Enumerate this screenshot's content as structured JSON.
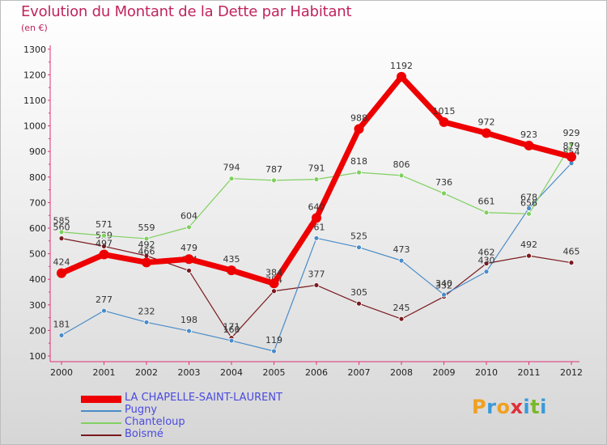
{
  "title": "Evolution du Montant de la Dette par Habitant",
  "unit": "(en €)",
  "brand": {
    "letters": [
      "P",
      "r",
      "o",
      "x",
      "i",
      "t",
      "i"
    ],
    "colors": [
      "#f0a020",
      "#3a9ad9",
      "#f0a020",
      "#e0303a",
      "#3a9ad9",
      "#7ab828",
      "#3a9ad9"
    ]
  },
  "chart_data": {
    "type": "line",
    "title": "Evolution du Montant de la Dette par Habitant",
    "ylabel": "(en €)",
    "xlabel": "",
    "ylim": [
      100,
      1300
    ],
    "yticks": [
      100,
      200,
      300,
      400,
      500,
      600,
      700,
      800,
      900,
      1000,
      1100,
      1200,
      1300
    ],
    "categories": [
      "2000",
      "2001",
      "2002",
      "2003",
      "2004",
      "2005",
      "2006",
      "2007",
      "2008",
      "2009",
      "2010",
      "2011",
      "2012"
    ],
    "grid": false,
    "legend_position": "bottom-left",
    "series": [
      {
        "name": "Boismé",
        "color": "#7a1a1f",
        "values": [
          560,
          529,
          492,
          434,
          171,
          354,
          377,
          305,
          245,
          332,
          462,
          492,
          465
        ]
      },
      {
        "name": "Pugny",
        "color": "#4a8cc8",
        "values": [
          181,
          277,
          232,
          198,
          160,
          119,
          561,
          525,
          473,
          340,
          430,
          678,
          854
        ]
      },
      {
        "name": "Chanteloup",
        "color": "#80d060",
        "values": [
          585,
          571,
          559,
          604,
          794,
          787,
          791,
          818,
          806,
          736,
          661,
          656,
          929
        ]
      },
      {
        "name": "LA CHAPELLE-SAINT-LAURENT",
        "color": "#ee0000",
        "values": [
          424,
          497,
          466,
          479,
          435,
          384,
          640,
          988,
          1192,
          1015,
          972,
          923,
          879
        ]
      }
    ]
  }
}
